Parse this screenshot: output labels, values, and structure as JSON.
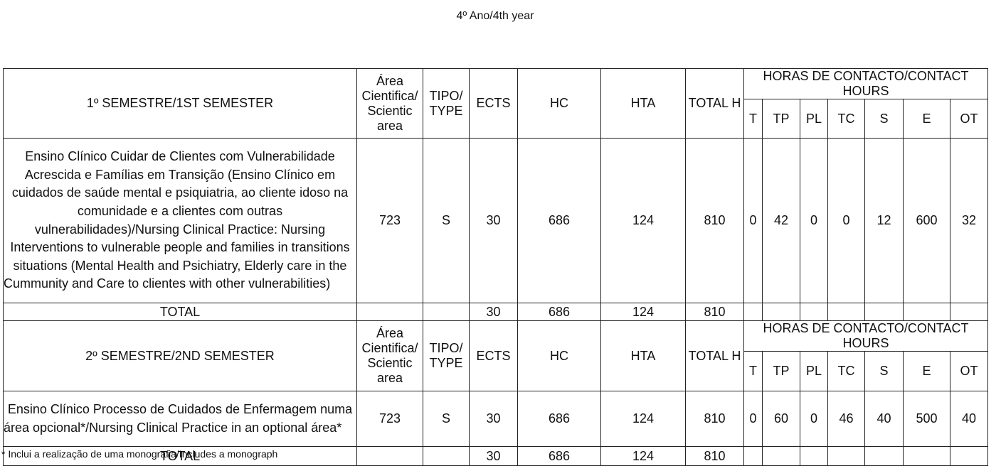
{
  "page_title": "4º Ano/4th year",
  "headers": {
    "area": "Área Cientifica/ Scientic area",
    "tipo": "TIPO/ TYPE",
    "ects": "ECTS",
    "hc": "HC",
    "hta": "HTA",
    "total_h": "TOTAL H",
    "contact_hours": "HORAS DE CONTACTO/CONTACT HOURS",
    "sub": [
      "T",
      "TP",
      "PL",
      "TC",
      "S",
      "E",
      "OT"
    ]
  },
  "semesters": [
    {
      "title": "1º SEMESTRE/1ST SEMESTER",
      "course": {
        "name": "Ensino Clínico Cuidar de Clientes com Vulnerabilidade Acrescida e Famílias em Transição (Ensino Clínico em cuidados de saúde mental e psiquiatria, ao cliente idoso na comunidade e a clientes com outras vulnerabilidades)/Nursing Clinical Practice: Nursing Interventions to vulnerable people and families in transitions situations (Mental Health and Psichiatry, Elderly care in the Cummunity and Care to clientes with other vulnerabilities)",
        "area": "723",
        "tipo": "S",
        "ects": "30",
        "hc": "686",
        "hta": "124",
        "total": "810",
        "hours": [
          "0",
          "42",
          "0",
          "0",
          "12",
          "600",
          "32"
        ]
      },
      "total": {
        "label": "TOTAL",
        "ects": "30",
        "hc": "686",
        "hta": "124",
        "total": "810"
      }
    },
    {
      "title": "2º SEMESTRE/2ND SEMESTER",
      "course": {
        "name": "Ensino Clínico Processo de Cuidados de Enfermagem numa área opcional*/Nursing Clinical Practice in an optional área*",
        "area": "723",
        "tipo": "S",
        "ects": "30",
        "hc": "686",
        "hta": "124",
        "total": "810",
        "hours": [
          "0",
          "60",
          "0",
          "46",
          "40",
          "500",
          "40"
        ]
      },
      "total": {
        "label": "TOTAL",
        "ects": "30",
        "hc": "686",
        "hta": "124",
        "total": "810"
      }
    }
  ],
  "footnote": "* Inclui a realização de uma monografia/Includes a monograph"
}
